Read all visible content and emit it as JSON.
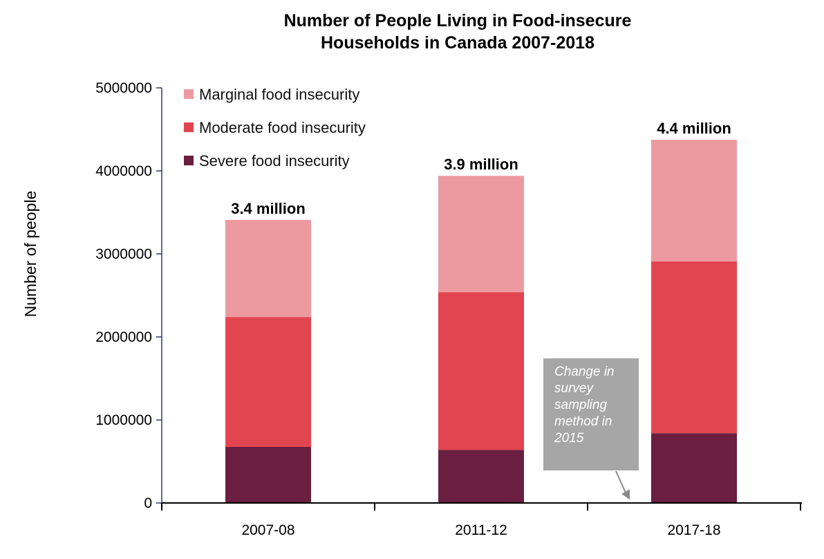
{
  "chart_data": {
    "type": "bar",
    "stacked": true,
    "title": [
      "Number of People Living in Food-insecure",
      "Households in Canada 2007-2018"
    ],
    "xlabel": "",
    "ylabel": "Number of people",
    "ylim": [
      0,
      5000000
    ],
    "yticks": [
      "0",
      "1000000",
      "2000000",
      "3000000",
      "4000000",
      "5000000"
    ],
    "categories": [
      "2007-08",
      "2011-12",
      "2017-18"
    ],
    "series": [
      {
        "name": "Severe food insecurity",
        "color": "#6b1f40",
        "values": [
          675000,
          640000,
          840000
        ]
      },
      {
        "name": "Moderate food insecurity",
        "color": "#e34550",
        "values": [
          1565000,
          1900000,
          2070000
        ]
      },
      {
        "name": "Marginal food insecurity",
        "color": "#ec9aa0",
        "values": [
          1170000,
          1400000,
          1465000
        ]
      }
    ],
    "legend_order": [
      "Marginal food insecurity",
      "Moderate food insecurity",
      "Severe food insecurity"
    ],
    "legend_position": "top-left",
    "data_labels": [
      "3.4 million",
      "3.9 million",
      "4.4 million"
    ],
    "grid": false,
    "annotation": "Change in survey sampling method in 2015"
  }
}
